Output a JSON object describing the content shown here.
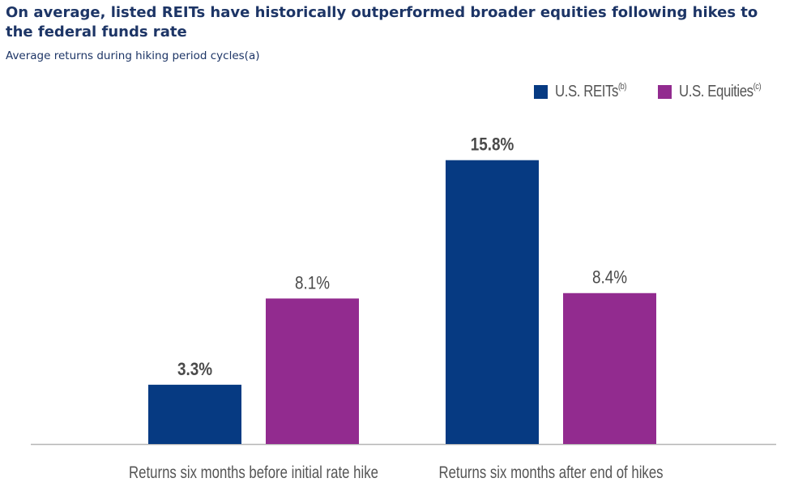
{
  "chart_data": {
    "type": "bar",
    "title": "On average, listed REITs have historically outperformed broader equities following hikes to the federal funds rate",
    "subtitle": "Average returns during hiking period cycles(a)",
    "categories": [
      "Returns six months before initial rate hike",
      "Returns six months after end of hikes"
    ],
    "series": [
      {
        "name": "U.S. REITs",
        "note": "(b)",
        "color": "#063a82",
        "values": [
          3.3,
          15.8
        ],
        "labels": [
          "3.3%",
          "15.8%"
        ],
        "label_bold": true
      },
      {
        "name": "U.S. Equities",
        "note": "(c)",
        "color": "#922b8f",
        "values": [
          8.1,
          8.4
        ],
        "labels": [
          "8.1%",
          "8.4%"
        ],
        "label_bold": false
      }
    ],
    "ylim": [
      0,
      17.5
    ],
    "grid": false,
    "legend_position": "top-right"
  }
}
